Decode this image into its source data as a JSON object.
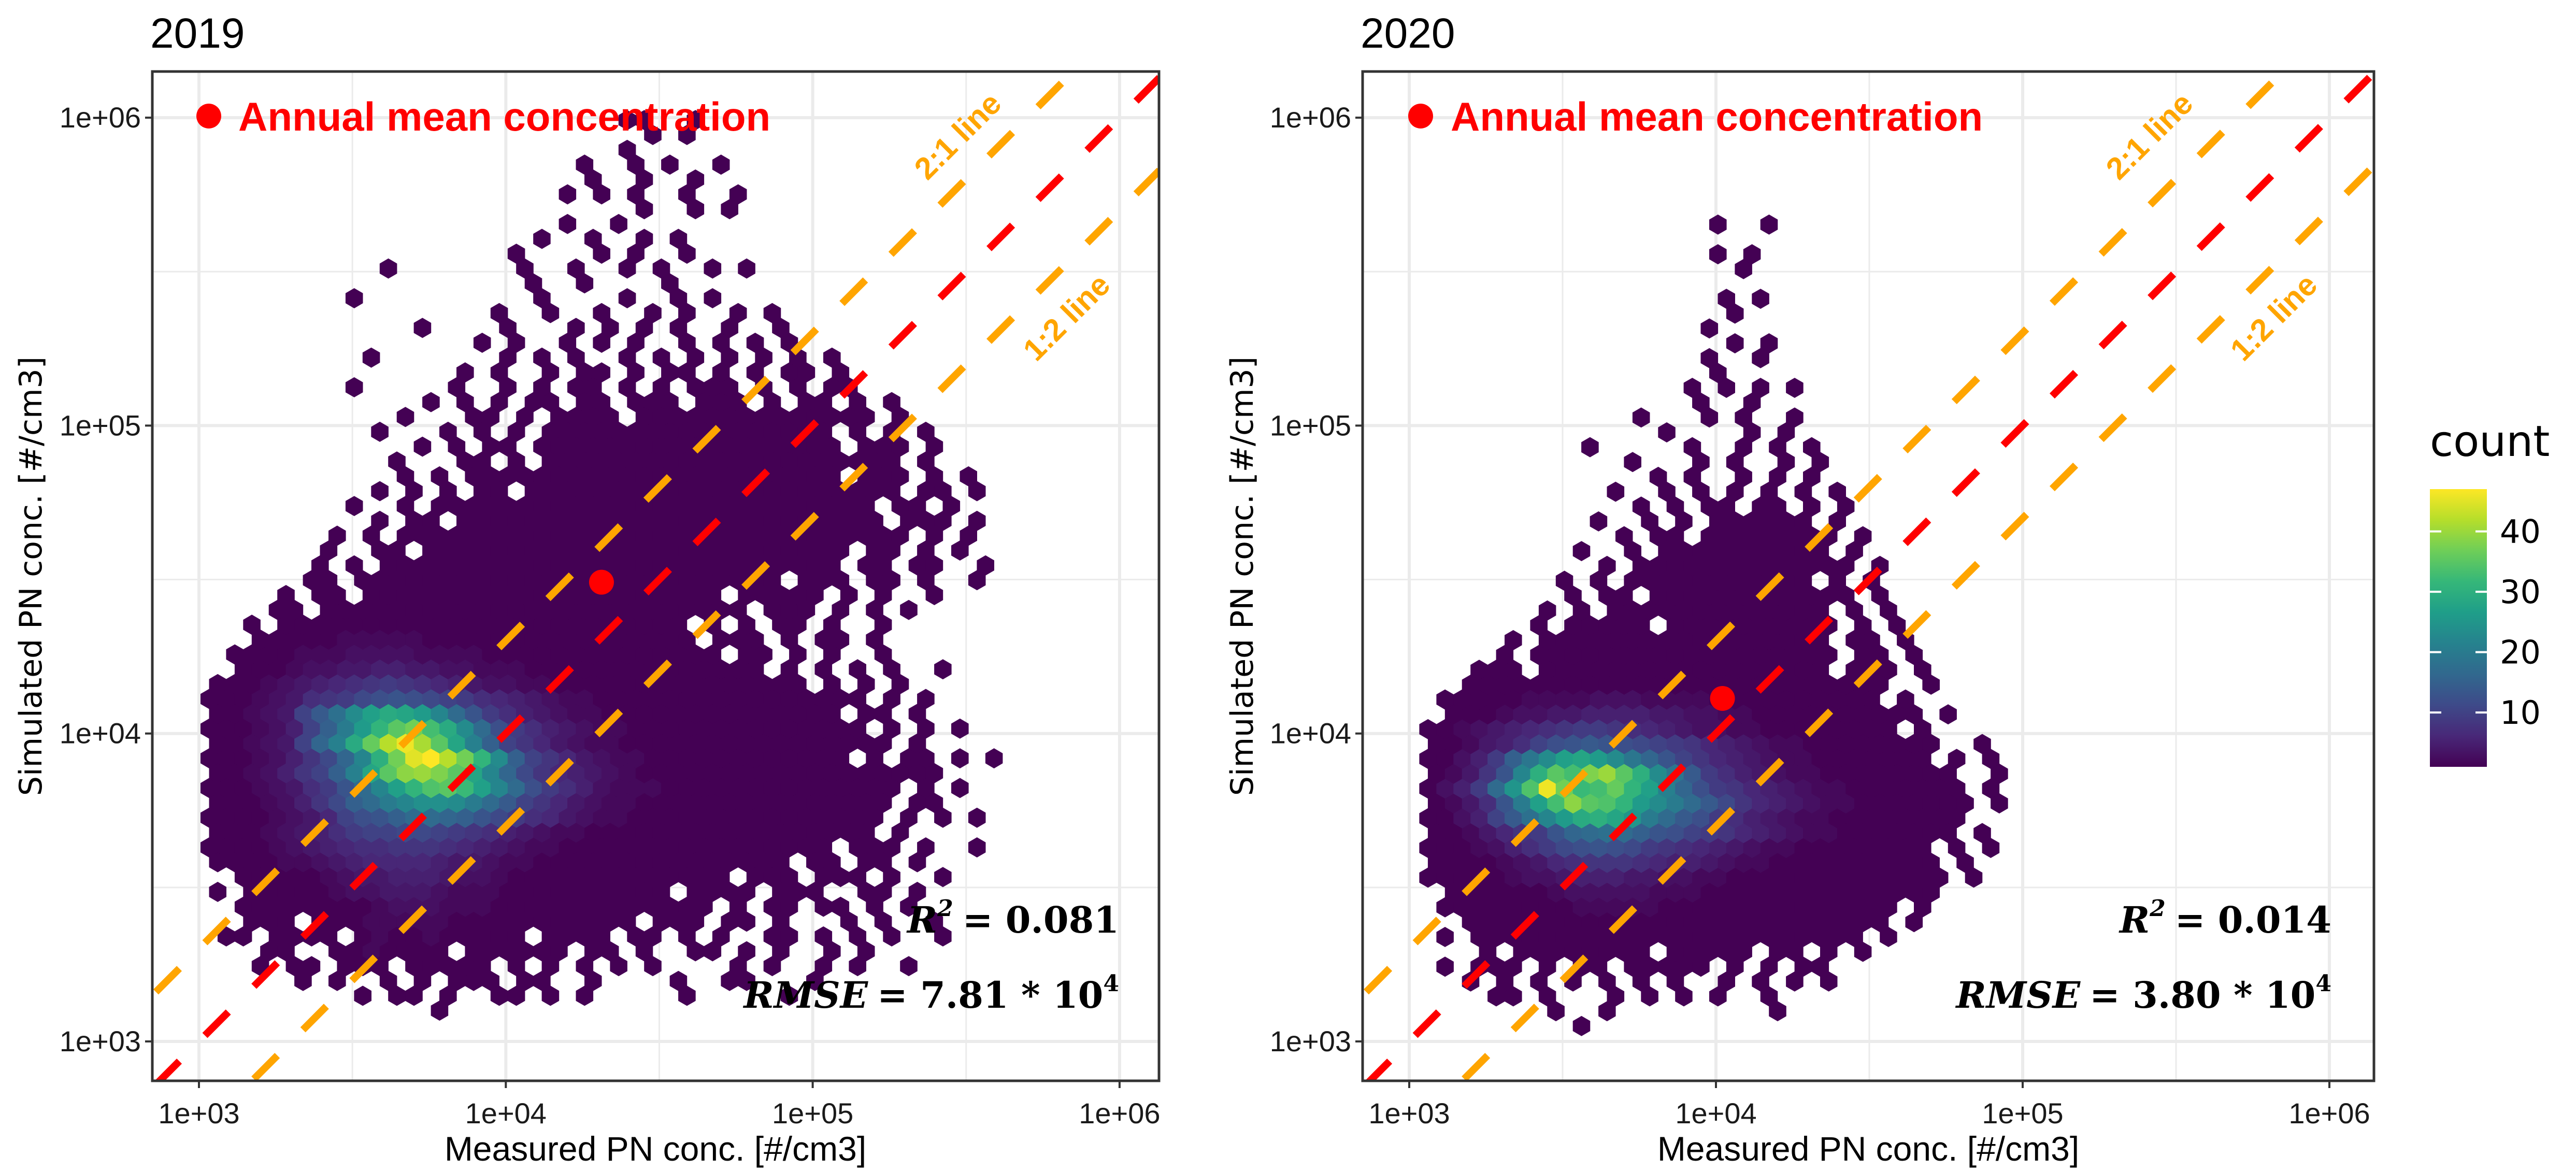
{
  "figure": {
    "legend": {
      "title": "count",
      "ticks": [
        10,
        20,
        30,
        40
      ],
      "tick_labels": [
        "10",
        "20",
        "30",
        "40"
      ],
      "range": [
        1,
        47
      ],
      "colormap": "viridis",
      "stops": [
        "#440154",
        "#482878",
        "#3e4a89",
        "#31688e",
        "#26828e",
        "#1f9e89",
        "#35b779",
        "#6ece58",
        "#b5de2b",
        "#fde725"
      ]
    },
    "colors": {
      "one_to_one": "#ff0000",
      "ratio_lines": "#ffa500",
      "annual_mean": "#ff0000",
      "grid": "#ebebeb",
      "border": "#333333"
    }
  },
  "chart_data": [
    {
      "type": "heatmap",
      "subtype": "hexbin",
      "title": "2019",
      "xlabel": "Measured PN conc. [#/cm3]",
      "ylabel": "Simulated PN conc. [#/cm3]",
      "xscale": "log10",
      "yscale": "log10",
      "xlim": [
        700,
        1400000
      ],
      "ylim": [
        700,
        1400000
      ],
      "xticks": [
        1000,
        10000,
        100000,
        1000000
      ],
      "xtick_labels": [
        "1e+03",
        "1e+04",
        "1e+05",
        "1e+06"
      ],
      "yticks": [
        1000,
        10000,
        100000,
        1000000
      ],
      "ytick_labels": [
        "1e+03",
        "1e+04",
        "1e+05",
        "1e+06"
      ],
      "grid": true,
      "annotation": "Annual mean concentration",
      "annual_mean": {
        "x": 20500,
        "y": 31000
      },
      "reference_lines": [
        {
          "name": "1:1 line",
          "slope_ratio": 1,
          "color": "#ff0000",
          "style": "dashed",
          "label": ""
        },
        {
          "name": "2:1 line",
          "slope_ratio": 2,
          "color": "#ffa500",
          "style": "dashed",
          "label": "2:1 line"
        },
        {
          "name": "1:2 line",
          "slope_ratio": 0.5,
          "color": "#ffa500",
          "style": "dashed",
          "label": "1:2 line"
        }
      ],
      "stats": {
        "r2_label": "R",
        "r2_sup": "2",
        "r2_value": "= 0.081",
        "rmse_label": "RMSE",
        "rmse_value": "= 7.81 * 10",
        "rmse_sup": "4"
      },
      "hexbin": {
        "bin_log_width": 0.0556,
        "x0_log": 2.95,
        "rows_y0_log": 3.1,
        "row_log_step": 0.0482,
        "encoding": "'.'=0, '1'-'9'=count, 'a'-'z'=10..35, 'A'-'L'=36..47; odd rows offset half a bin",
        "rows": [
          "...............1.........................................",
          "..........1.11.1..11.1.1.....1.....1.....................",
          ".......1.1..1.1.111.11..1....1..11...1...................",
          "....1.11.111.11111.1.1.1.1.1....1.1..1.1..1..............",
          ".....11..1121111.111111.11.1..11.1.1..1.1.................",
          "..11.1111.1211211111.1111.11.1.1..11.1.1.1..1............",
          "....111.1112222211111111111.111.11.1...1.1..1............",
          "...1111111123332221111111111111.1.11.11.1.1..............",
          "..1.1111123344432221111111111.1111.111..11.1.............",
          "...11111234455543321111111111111.111.111.1..1............",
          "..1111223456666544322111111111111111.11.11.1.............",
          ".1111234567788876543221111111111111111.111.1..1..........",
          "..111234579aabba9875432211111111111111111.1..............",
          ".11112346acdfhhgfdb9764322111111111111111.1.1.1..........",
          "..1112358bfhkmoonkhea864322111111111111111.11............",
          ".11123479dhmrvyzwrmhc975322211111111111111.1.1...........",
          "..112358aflszDECzsmgb865432111111111111111111............",
          ".1112358bgmuBJLGBvnfa864322111111111111.1.11.1.1.........",
          "..11234agltAGKFzslfa8643221111111111111111.1.............",
          ".111235afkqvzBxtnhc975432211111111111111.1.1.1...........",
          "..11234aeinrtsqmhd975432211111111111111.11.1.............",
          ".111234789bcdcba976543221111111111111111.1.1.............",
          "..11123456789876543322111111111111111.1.1.1..............",
          "...1112334455443322211111111111111.1.1.1.1..1............",
          "...11112223333222211111111111111.11.1.1..1...............",
          "....11111222221111111111111111.111.1.11.1................",
          "....1.111111111111111111111111.1.1.11.1..1...............",
          ".....11.1111111111111111111111111.111.1.1.1..............",
          "......1.11.111111111111111111111.11111.1.1..1............",
          ".......11.1111111111111111111111111.111.11.1..1..........",
          "........1.1.111111111111111111111111111.11.11..1.........",
          "........1..11.1111111111111111111111111.11.1.1...........",
          ".........1.1.111111111111111111111111111111.1.1..........",
          "...........1.11.1111111111111111111111111.111.1..........",
          "..........1..1.11111111111111111111111111.11.1...........",
          "...........1.1.1.11.1111111111111111111111.11.1..........",
          ".............1.1.1111111111111111111111.111.1.1..........",
          "............1...11.1.111111111111111111111.1.............",
          "..............1.1.11.111111111111111111.111.1............",
          "...........1...1.1.1.11111111111111111.1.1.1.............",
          ".............1...11.1.1111.11111111111111.1..............",
          "..............1.1.1.11.11.111.111.1.11.1.1...............",
          "..........1.....1..1.1.11.1.1.111.1.1.11.................",
          "................1.1..1.11.1.11.1.1.11.1..................",
          "...........1.......1.1.1..1.1.1.1.1.1.1..................",
          ".................1.1..1.1.1..1.1.1.1.....................",
          "..............1....1...1.1.1.1..1..1.....................",
          "..................1..1..1..1.1..1.1......................",
          "..........1..........1....1..1.1.........................",
          "....................1..1....1............................",
          "............1.......1..1..1.1..1.1.......................",
          "...................1....1.1..1...........................",
          ".....................1..1..1.1...........................",
          "......................1..1...............................",
          "...........................1..1.1........................",
          "......................1.1.1..1..1........................",
          "........................1..1..1..........................",
          ".......................1..1.1..1.........................",
          "..........................1..............................",
          "...........................1.1...........................",
          "..........................11..1.........................."
        ]
      }
    },
    {
      "type": "heatmap",
      "subtype": "hexbin",
      "title": "2020",
      "xlabel": "Measured PN conc. [#/cm3]",
      "ylabel": "Simulated PN conc. [#/cm3]",
      "xscale": "log10",
      "yscale": "log10",
      "xlim": [
        700,
        1400000
      ],
      "ylim": [
        700,
        1400000
      ],
      "xticks": [
        1000,
        10000,
        100000,
        1000000
      ],
      "xtick_labels": [
        "1e+03",
        "1e+04",
        "1e+05",
        "1e+06"
      ],
      "yticks": [
        1000,
        10000,
        100000,
        1000000
      ],
      "ytick_labels": [
        "1e+03",
        "1e+04",
        "1e+05",
        "1e+06"
      ],
      "grid": true,
      "annotation": "Annual mean concentration",
      "annual_mean": {
        "x": 10500,
        "y": 13000
      },
      "reference_lines": [
        {
          "name": "1:1 line",
          "slope_ratio": 1,
          "color": "#ff0000",
          "style": "dashed",
          "label": ""
        },
        {
          "name": "2:1 line",
          "slope_ratio": 2,
          "color": "#ffa500",
          "style": "dashed",
          "label": "2:1 line"
        },
        {
          "name": "1:2 line",
          "slope_ratio": 0.5,
          "color": "#ffa500",
          "style": "dashed",
          "label": "1:2 line"
        }
      ],
      "stats": {
        "r2_label": "R",
        "r2_sup": "2",
        "r2_value": "= 0.014",
        "rmse_label": "RMSE",
        "rmse_value": "= 3.80 * 10",
        "rmse_sup": "4"
      },
      "hexbin": {
        "bin_log_width": 0.0556,
        "x0_log": 2.95,
        "rows_y0_log": 3.05,
        "row_log_step": 0.0482,
        "encoding": "'.'=0, '1'-'9'=count, 'a'-'z'=10..35, 'A'-'L'=36..47; odd rows offset half a bin",
        "rows": [
          "...........1.............................................",
          ".........1..1.........1..................................",
          "......11.1...1.1.1.1..1..................................",
          "....1.1.1.1.1.1.1..1.1.1.1...............................",
          "...1.111.1.11.11111.1.1.11...............................",
          ".....1.11111111.11111.11.1.1.............................",
          "...1.11111111111111111111111.1...........................",
          "....1111111111111111111111111.1..........................",
          "...111111112222211111111111111.1.........................",
          "...11111123333322211111111111111.........................",
          "..1111123345554433221111111111111.1......................",
          "..111123467888765543221111111111.1.......................",
          "..11123579bcdcb98765432211111111.1.1.....................",
          "..1124689dghihfdca986543221111111.1......................",
          "..1135aeimqtuspkhec975432211111111.......................",
          "..1247dkrxDzyvqnkheb86543221111111.1.....................",
          "..1359hpyKBwxAvrlgc986543221111111.1.....................",
          "..1248dmuzxCEzunje975432211111111..1.....................",
          "..11359fjnrsqnjgda86543221111111.1.1.....................",
          "..112457acdedcba9865432211111111..1......................",
          "..1123456789987654332211111111.1.........................",
          "...1112334455554433221111111111.1........................",
          "...11111222233322221111111111.1..........................",
          "....1111111111111111111111111..1.........................",
          ".....111.11111111111111111.111.1.........................",
          "......1.111111111111111111.11.1..........................",
          ".......1.11111111111111111.11.1..........................",
          "........1.11111.1111111111.1.1...........................",
          ".........1.1.1111111111111.1.1...........................",
          "..........1.11.111111111111.1............................",
          "..........1.1.11111111111.1.1............................",
          "............1.1111111111111.1............................",
          "...........1..1.1111111111.1.............................",
          ".............1.11.11111111.1.............................",
          "............1..1.1.111111.1..............................",
          "..............1.1.11.11.1.1..............................",
          ".............1..1.1.1.1.1.1..............................",
          "...............1.1..1.1.1................................",
          "..............1...1.1..1.1...............................",
          "...........1.....1..1.1.1................................",
          "................1....1.1.................................",
          "..............1...1.1..1.................................",
          "..................1..1...................................",
          ".................1.1.1.1.................................",
          "...................1.....................................",
          "..................1..1...................................",
          "....................1.1..................................",
          "..................1......................................",
          "....................1....................................",
          "...................1.1...................................",
          ".........................................................",
          "....................1....................................",
          "...................1.1...................................",
          ".........................................................",
          "...................1..1..................................",
          "........................................................."
        ]
      }
    }
  ]
}
